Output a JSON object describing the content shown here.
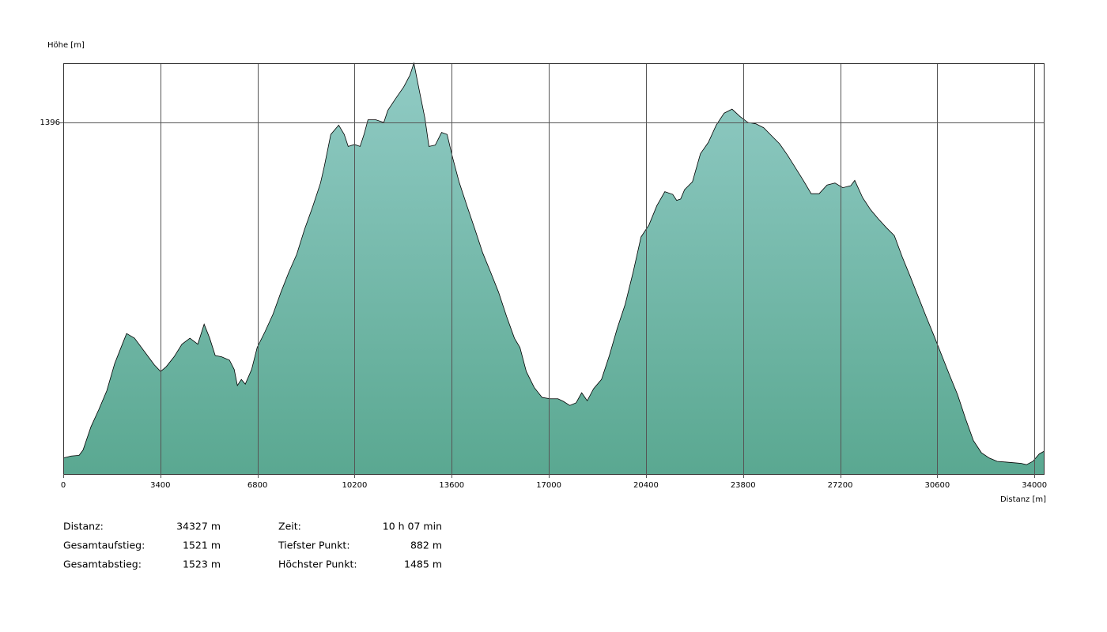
{
  "chart_data": {
    "type": "area",
    "y_label": "Höhe [m]",
    "x_label": "Distanz [m]",
    "xlim": [
      0,
      34327
    ],
    "ylim": [
      868,
      1485
    ],
    "xticks": [
      0,
      3400,
      6800,
      10200,
      13600,
      17000,
      20400,
      23800,
      27200,
      30600,
      34000
    ],
    "yticks": [
      1396
    ],
    "grid": true,
    "gradient": [
      "#91cbc5",
      "#5aa891"
    ],
    "line_color": "#000000",
    "x": [
      0,
      277,
      554,
      693,
      970,
      1247,
      1524,
      1801,
      2078,
      2217,
      2494,
      2910,
      3187,
      3408,
      3602,
      3879,
      4156,
      4434,
      4711,
      4932,
      5126,
      5320,
      5542,
      5819,
      5985,
      6096,
      6235,
      6373,
      6595,
      6789,
      7066,
      7343,
      7620,
      7897,
      8174,
      8452,
      8729,
      9006,
      9144,
      9366,
      9643,
      9837,
      9976,
      10197,
      10391,
      10530,
      10668,
      10945,
      11223,
      11361,
      11638,
      11915,
      12137,
      12276,
      12470,
      12663,
      12802,
      13024,
      13245,
      13439,
      13633,
      13855,
      14132,
      14409,
      14686,
      14963,
      15241,
      15518,
      15795,
      15989,
      16211,
      16488,
      16765,
      17042,
      17319,
      17513,
      17734,
      17956,
      18150,
      18344,
      18566,
      18843,
      19120,
      19397,
      19674,
      19951,
      20228,
      20505,
      20782,
      21060,
      21337,
      21475,
      21614,
      21752,
      22029,
      22307,
      22584,
      22861,
      23138,
      23415,
      23692,
      23969,
      24246,
      24523,
      24800,
      25078,
      25355,
      25632,
      25909,
      26186,
      26463,
      26740,
      27017,
      27294,
      27571,
      27710,
      27987,
      28264,
      28541,
      28818,
      29096,
      29373,
      29650,
      29927,
      30204,
      30481,
      30758,
      31035,
      31312,
      31589,
      31867,
      32144,
      32421,
      32698,
      32975,
      33252,
      33529,
      33723,
      33945,
      34166,
      34327
    ],
    "values": [
      892,
      895,
      896,
      904,
      939,
      965,
      993,
      1034,
      1064,
      1079,
      1072,
      1048,
      1032,
      1022,
      1029,
      1044,
      1063,
      1072,
      1063,
      1093,
      1072,
      1046,
      1044,
      1039,
      1025,
      1001,
      1010,
      1003,
      1025,
      1058,
      1082,
      1108,
      1141,
      1171,
      1198,
      1236,
      1269,
      1305,
      1331,
      1378,
      1392,
      1378,
      1360,
      1363,
      1360,
      1378,
      1400,
      1400,
      1396,
      1414,
      1432,
      1449,
      1467,
      1485,
      1443,
      1402,
      1360,
      1362,
      1381,
      1378,
      1343,
      1307,
      1271,
      1236,
      1200,
      1171,
      1141,
      1105,
      1072,
      1058,
      1022,
      998,
      983,
      981,
      981,
      977,
      971,
      975,
      990,
      978,
      996,
      1010,
      1046,
      1087,
      1123,
      1171,
      1224,
      1242,
      1271,
      1292,
      1288,
      1279,
      1281,
      1295,
      1307,
      1349,
      1366,
      1392,
      1410,
      1416,
      1405,
      1396,
      1394,
      1388,
      1376,
      1364,
      1347,
      1328,
      1309,
      1289,
      1289,
      1302,
      1305,
      1298,
      1301,
      1309,
      1283,
      1265,
      1251,
      1238,
      1226,
      1194,
      1165,
      1135,
      1105,
      1076,
      1046,
      1016,
      987,
      951,
      918,
      900,
      892,
      887,
      886,
      885,
      884,
      882,
      887,
      898,
      902
    ]
  },
  "stats": [
    {
      "label": "Distanz:",
      "value": "34327 m"
    },
    {
      "label": "Gesamtaufstieg:",
      "value": "1521 m"
    },
    {
      "label": "Gesamtabstieg:",
      "value": "1523 m"
    },
    {
      "label": "Zeit:",
      "value": "10 h 07 min"
    },
    {
      "label": "Tiefster Punkt:",
      "value": "882 m"
    },
    {
      "label": "Höchster Punkt:",
      "value": "1485 m"
    }
  ]
}
